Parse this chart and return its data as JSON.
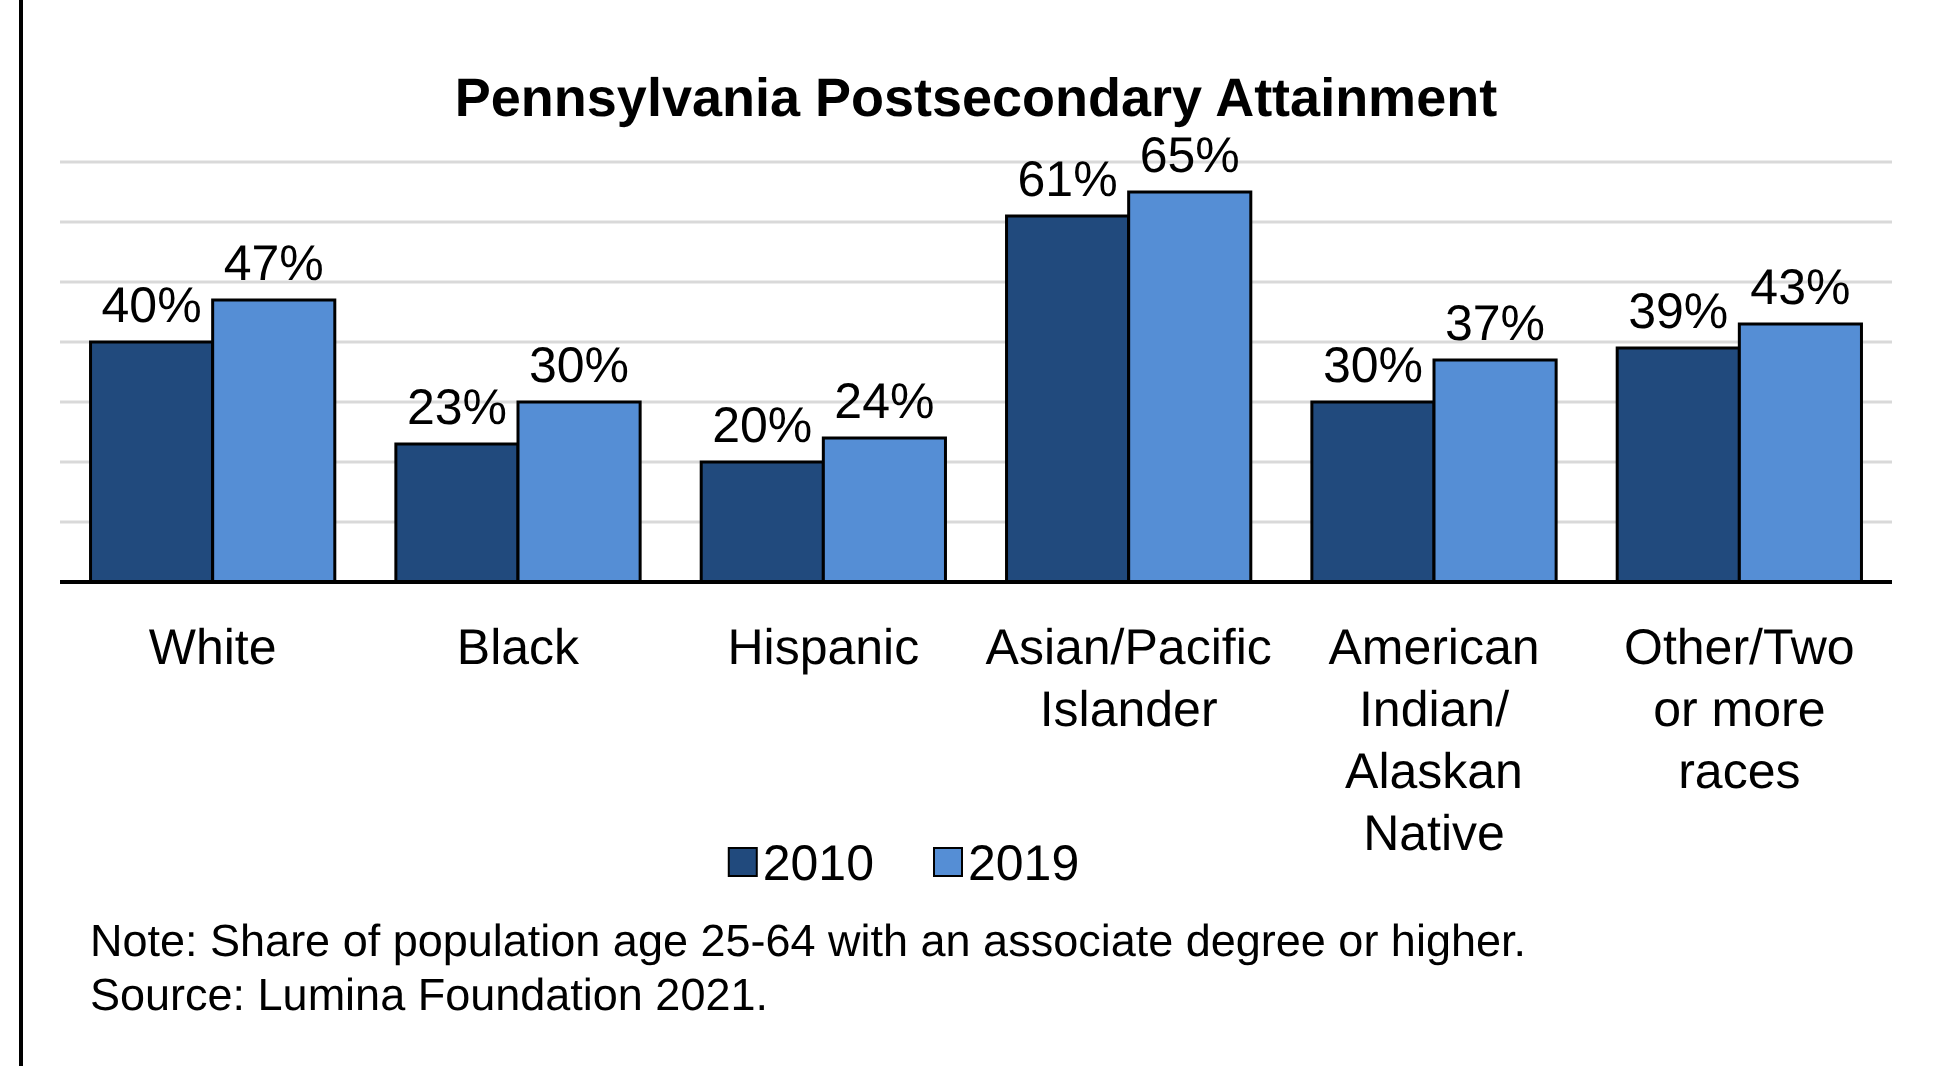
{
  "chart_data": {
    "type": "bar",
    "title": "Pennsylvania Postsecondary Attainment",
    "categories": [
      "White",
      "Black",
      "Hispanic",
      "Asian/Pacific Islander",
      "American Indian/ Alaskan Native",
      "Other/Two or more races"
    ],
    "series": [
      {
        "name": "2010",
        "color": "#214a7d",
        "values": [
          40,
          23,
          20,
          61,
          30,
          39
        ],
        "value_labels": [
          "40%",
          "23%",
          "20%",
          "61%",
          "30%",
          "39%"
        ]
      },
      {
        "name": "2019",
        "color": "#558ed5",
        "values": [
          47,
          30,
          24,
          65,
          37,
          43
        ],
        "value_labels": [
          "47%",
          "30%",
          "24%",
          "65%",
          "37%",
          "43%"
        ]
      }
    ],
    "ylim": [
      0,
      70
    ],
    "yticks": [
      {
        "value": 0,
        "label": null
      },
      {
        "value": 10,
        "label": null
      },
      {
        "value": 20,
        "label": null
      },
      {
        "value": 30,
        "label": null
      },
      {
        "value": 40,
        "label": null
      },
      {
        "value": 50,
        "label": null
      },
      {
        "value": 60,
        "label": null
      },
      {
        "value": 70,
        "label": null
      }
    ],
    "grid": "y",
    "tick_labels": "x",
    "legend": "bottom",
    "annotations": [
      "Note: Share of population age 25-64 with an associate degree or higher.",
      "Source: Lumina Foundation 2021."
    ]
  }
}
